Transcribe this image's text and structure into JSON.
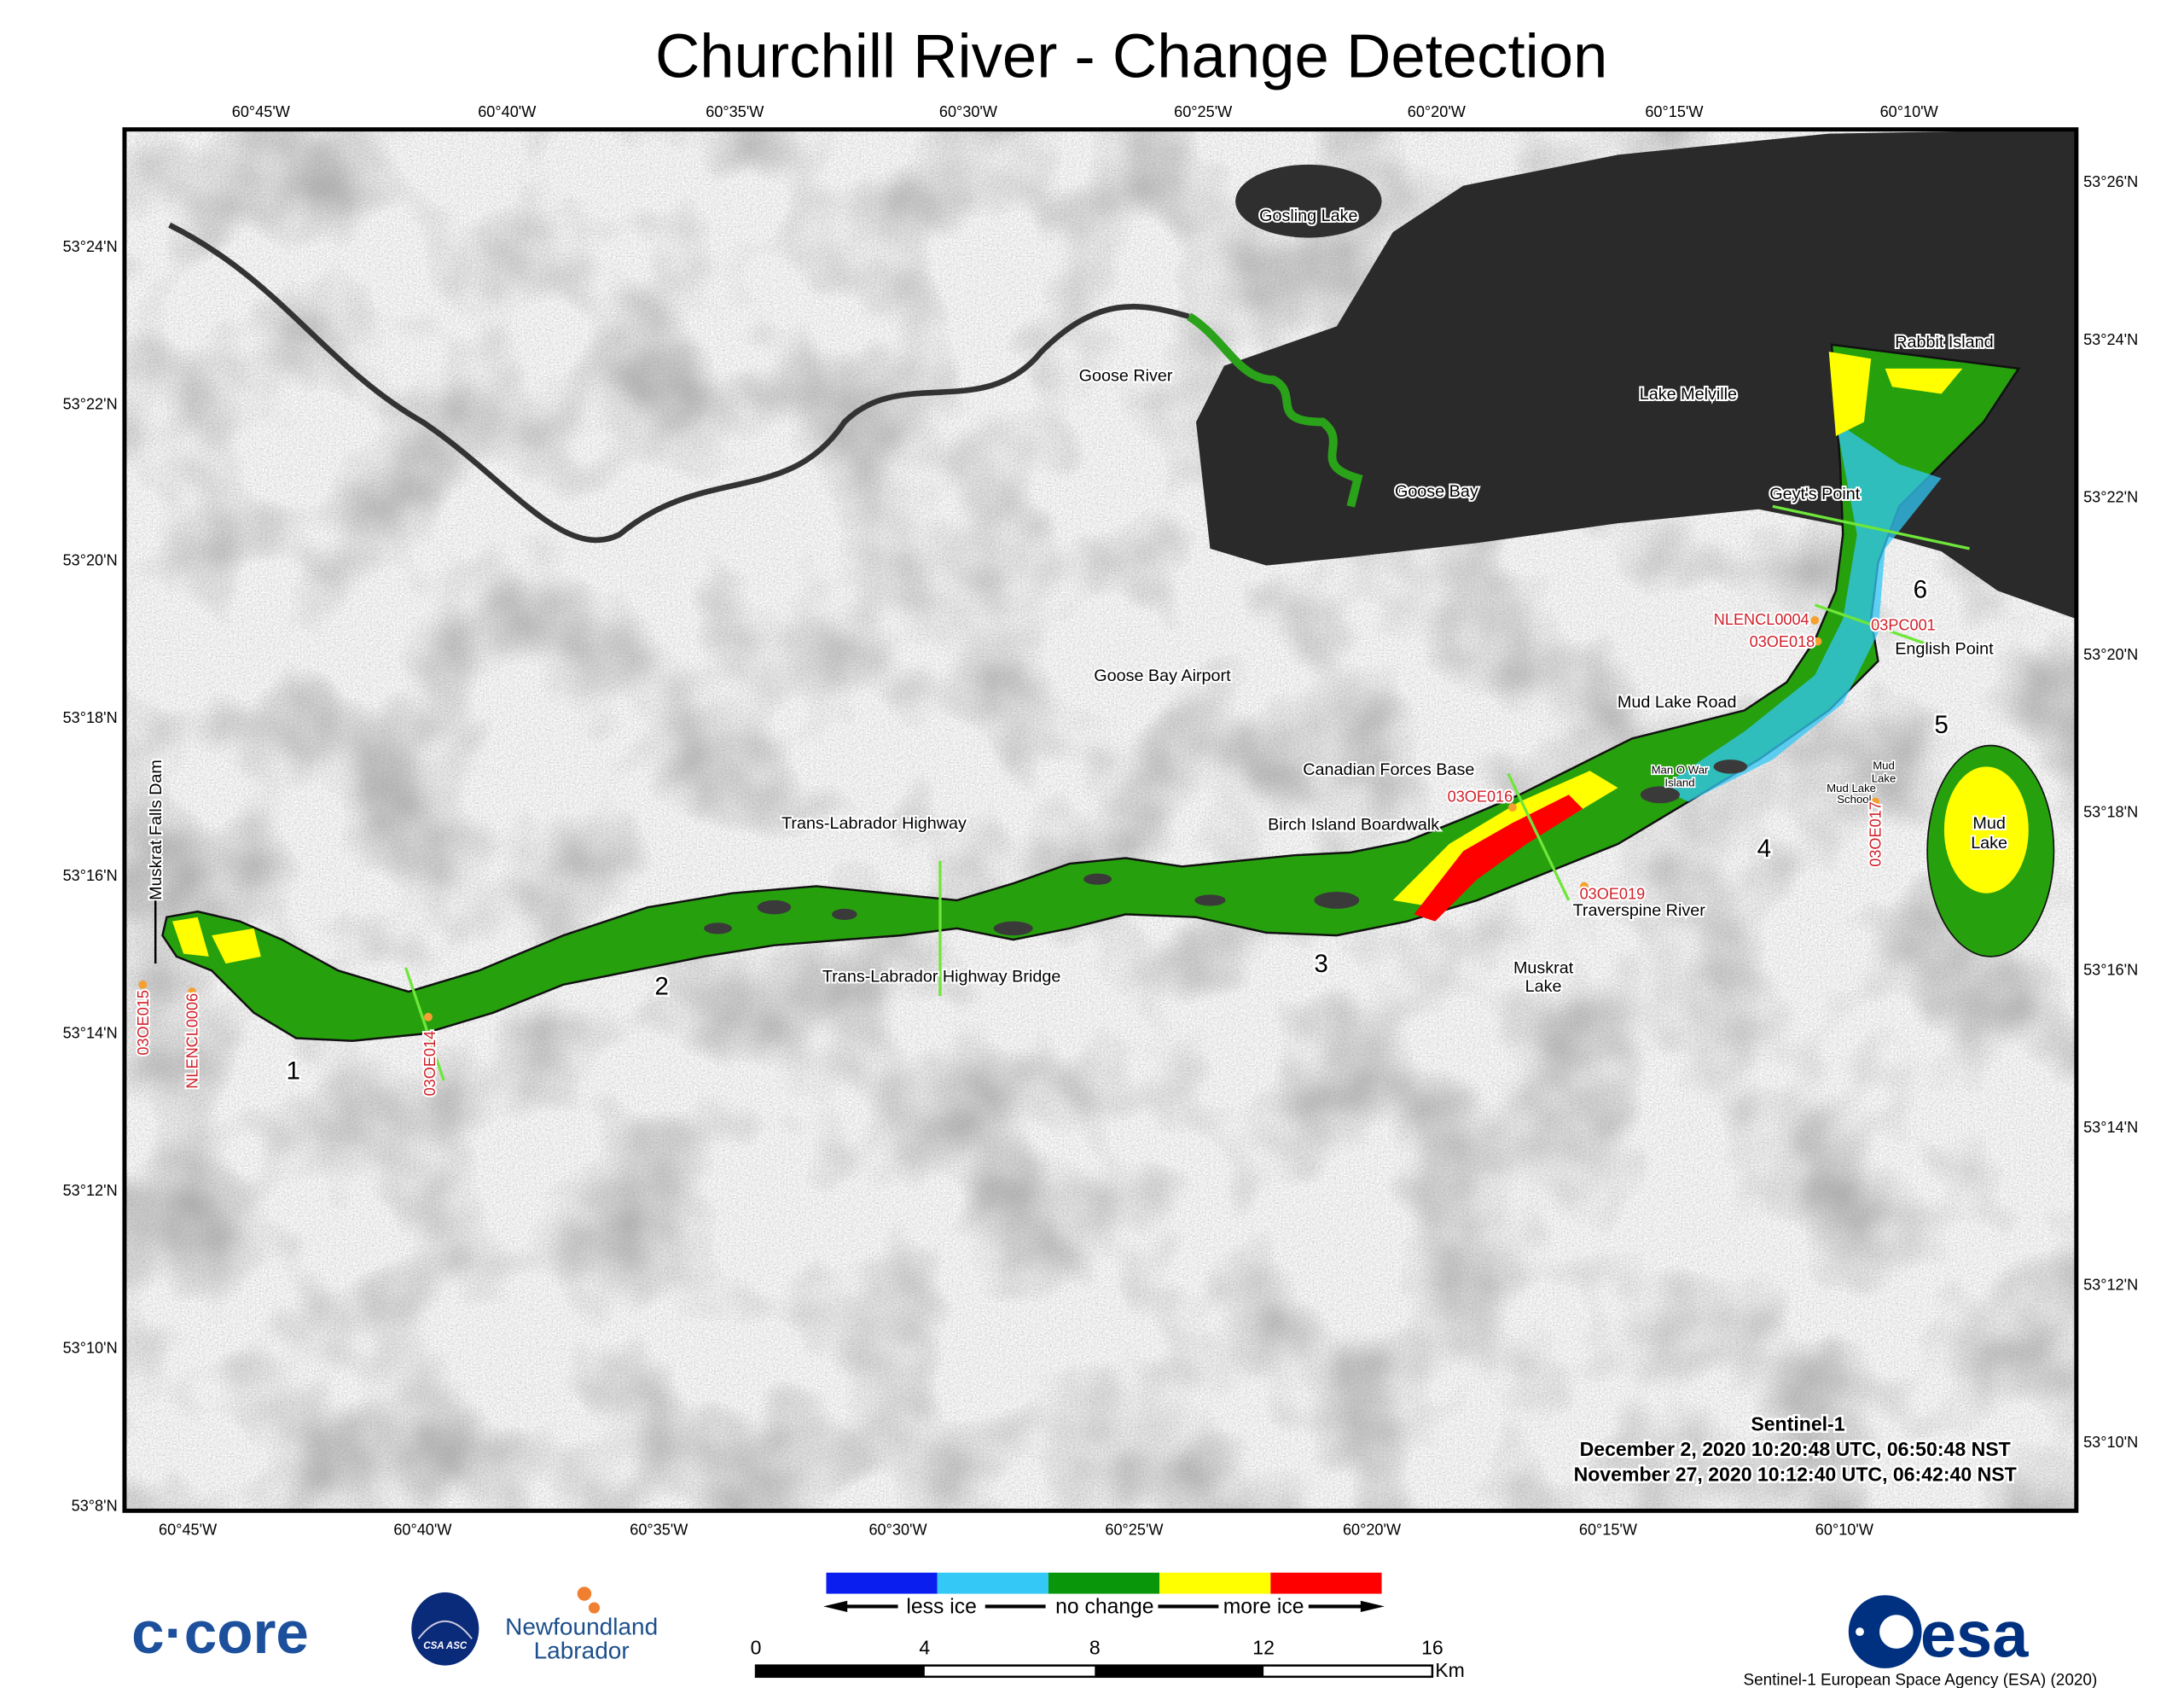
{
  "title": "Churchill River - Change Detection",
  "axes": {
    "top_lon": [
      "60°45'W",
      "60°40'W",
      "60°35'W",
      "60°30'W",
      "60°25'W",
      "60°20'W",
      "60°15'W",
      "60°10'W"
    ],
    "bottom_lon": [
      "60°45'W",
      "60°40'W",
      "60°35'W",
      "60°30'W",
      "60°25'W",
      "60°20'W",
      "60°15'W",
      "60°10'W"
    ],
    "left_lat": [
      "53°24'N",
      "53°22'N",
      "53°20'N",
      "53°18'N",
      "53°16'N",
      "53°14'N",
      "53°12'N",
      "53°10'N",
      "53°8'N"
    ],
    "right_lat": [
      "53°26'N",
      "53°24'N",
      "53°22'N",
      "53°20'N",
      "53°18'N",
      "53°16'N",
      "53°14'N",
      "53°12'N",
      "53°10'N"
    ]
  },
  "places": {
    "gosling_lake": "Gosling Lake",
    "goose_river": "Goose River",
    "lake_melville": "Lake Melville",
    "rabbit_island": "Rabbit Island",
    "goose_bay": "Goose Bay",
    "geyts_point": "Geyt's Point",
    "english_point": "English Point",
    "goose_bay_airport": "Goose Bay Airport",
    "mud_lake_road": "Mud Lake Road",
    "canadian_forces_base": "Canadian Forces Base",
    "man_o_war_1": "Man O War",
    "man_o_war_2": "Island",
    "mud_lake_small_1": "Mud",
    "mud_lake_small_2": "Lake",
    "mud_lake_school_1": "Mud Lake",
    "mud_lake_school_2": "School",
    "birch_island": "Birch Island Boardwalk",
    "trans_labrador_highway": "Trans-Labrador Highway",
    "mud_lake_1": "Mud",
    "mud_lake_2": "Lake",
    "traverspine_river": "Traverspine River",
    "muskrat_lake_1": "Muskrat",
    "muskrat_lake_2": "Lake",
    "highway_bridge": "Trans-Labrador Highway Bridge",
    "muskrat_falls_dam": "Muskrat Falls Dam"
  },
  "stations": [
    "NLENCL0004",
    "03PC001",
    "03OE018",
    "03OE016",
    "03OE017",
    "03OE019",
    "03OE014",
    "03OE015",
    "NLENCL0006"
  ],
  "sections": [
    "1",
    "2",
    "3",
    "4",
    "5",
    "6"
  ],
  "acquisition": {
    "sensor": "Sentinel-1",
    "date1": "December 2, 2020 10:20:48 UTC, 06:50:48 NST",
    "date2": "November 27, 2020 10:12:40 UTC, 06:42:40 NST"
  },
  "legend": {
    "colors": [
      "#0a1ef0",
      "#33c8f5",
      "#0a960a",
      "#ffff00",
      "#ff0000"
    ],
    "less_ice": "less ice",
    "no_change": "no change",
    "more_ice": "more ice"
  },
  "scale": {
    "ticks": [
      "0",
      "4",
      "8",
      "12",
      "16"
    ],
    "unit": "Km"
  },
  "logos": {
    "ccore": "c·core",
    "csa": "CSA ASC",
    "nl_1": "Newfoundland",
    "nl_2": "Labrador",
    "esa": "esa"
  },
  "credit": "Sentinel-1 European Space Agency (ESA) (2020)"
}
